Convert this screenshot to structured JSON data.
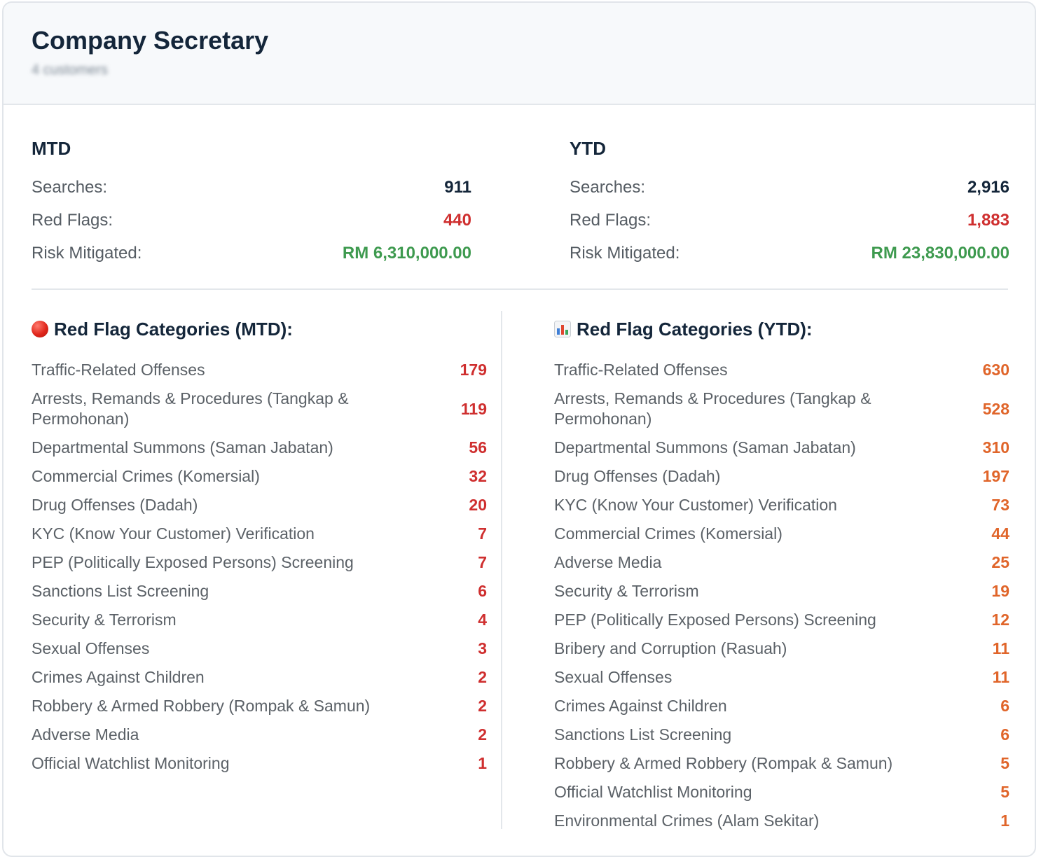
{
  "header": {
    "title": "Company Secretary",
    "subtitle": "4 customers"
  },
  "summary": {
    "mtd": {
      "heading": "MTD",
      "searches_label": "Searches:",
      "searches_value": "911",
      "red_flags_label": "Red Flags:",
      "red_flags_value": "440",
      "risk_label": "Risk Mitigated:",
      "risk_value": "RM 6,310,000.00"
    },
    "ytd": {
      "heading": "YTD",
      "searches_label": "Searches:",
      "searches_value": "2,916",
      "red_flags_label": "Red Flags:",
      "red_flags_value": "1,883",
      "risk_label": "Risk Mitigated:",
      "risk_value": "RM 23,830,000.00"
    }
  },
  "categories": {
    "mtd": {
      "heading": "Red Flag Categories (MTD):",
      "icon": "red-circle-icon",
      "items": [
        {
          "label": "Traffic-Related Offenses",
          "count": "179"
        },
        {
          "label": "Arrests, Remands & Procedures (Tangkap & Permohonan)",
          "count": "119"
        },
        {
          "label": "Departmental Summons (Saman Jabatan)",
          "count": "56"
        },
        {
          "label": "Commercial Crimes (Komersial)",
          "count": "32"
        },
        {
          "label": "Drug Offenses (Dadah)",
          "count": "20"
        },
        {
          "label": "KYC (Know Your Customer) Verification",
          "count": "7"
        },
        {
          "label": "PEP (Politically Exposed Persons) Screening",
          "count": "7"
        },
        {
          "label": "Sanctions List Screening",
          "count": "6"
        },
        {
          "label": "Security & Terrorism",
          "count": "4"
        },
        {
          "label": "Sexual Offenses",
          "count": "3"
        },
        {
          "label": "Crimes Against Children",
          "count": "2"
        },
        {
          "label": "Robbery & Armed Robbery (Rompak & Samun)",
          "count": "2"
        },
        {
          "label": "Adverse Media",
          "count": "2"
        },
        {
          "label": "Official Watchlist Monitoring",
          "count": "1"
        }
      ]
    },
    "ytd": {
      "heading": "Red Flag Categories (YTD):",
      "icon": "bar-chart-icon",
      "items": [
        {
          "label": "Traffic-Related Offenses",
          "count": "630"
        },
        {
          "label": "Arrests, Remands & Procedures (Tangkap & Permohonan)",
          "count": "528"
        },
        {
          "label": "Departmental Summons (Saman Jabatan)",
          "count": "310"
        },
        {
          "label": "Drug Offenses (Dadah)",
          "count": "197"
        },
        {
          "label": "KYC (Know Your Customer) Verification",
          "count": "73"
        },
        {
          "label": "Commercial Crimes (Komersial)",
          "count": "44"
        },
        {
          "label": "Adverse Media",
          "count": "25"
        },
        {
          "label": "Security & Terrorism",
          "count": "19"
        },
        {
          "label": "PEP (Politically Exposed Persons) Screening",
          "count": "12"
        },
        {
          "label": "Bribery and Corruption (Rasuah)",
          "count": "11"
        },
        {
          "label": "Sexual Offenses",
          "count": "11"
        },
        {
          "label": "Crimes Against Children",
          "count": "6"
        },
        {
          "label": "Sanctions List Screening",
          "count": "6"
        },
        {
          "label": "Robbery & Armed Robbery (Rompak & Samun)",
          "count": "5"
        },
        {
          "label": "Official Watchlist Monitoring",
          "count": "5"
        },
        {
          "label": "Environmental Crimes (Alam Sekitar)",
          "count": "1"
        }
      ]
    }
  },
  "colors": {
    "title": "#14263a",
    "red_value": "#cf2f2f",
    "green_value": "#3e9a4f",
    "ytd_count": "#e0652a"
  }
}
